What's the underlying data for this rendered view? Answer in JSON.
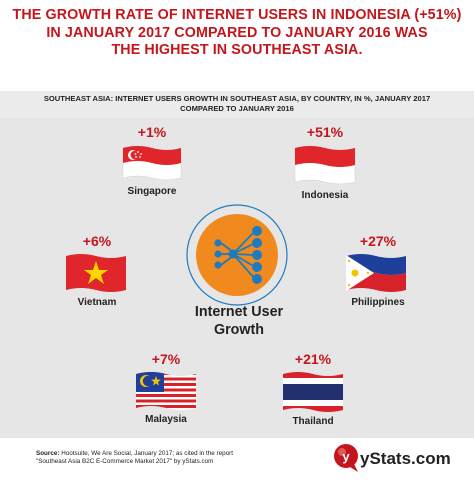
{
  "title_lines": [
    "THE GROWTH RATE OF INTERNET USERS IN INDONESIA (+51%)",
    "IN JANUARY 2017 COMPARED TO JANUARY 2016 WAS",
    "THE HIGHEST IN SOUTHEAST ASIA."
  ],
  "subtitle_lines": [
    "SOUTHEAST ASIA: INTERNET USERS GROWTH IN SOUTHEAST ASIA, BY COUNTRY, IN %, JANUARY 2017",
    "COMPARED TO JANUARY 2016"
  ],
  "hub": {
    "line1": "Internet User",
    "line2": "Growth",
    "icon": "network-growth-icon"
  },
  "chart_data": {
    "type": "table",
    "unit": "%",
    "categories": [
      "Singapore",
      "Indonesia",
      "Vietnam",
      "Philippines",
      "Malaysia",
      "Thailand"
    ],
    "values": [
      1,
      51,
      6,
      27,
      7,
      21
    ],
    "labels": [
      "+1%",
      "+51%",
      "+6%",
      "+27%",
      "+7%",
      "+21%"
    ],
    "flag_icons": [
      "singapore-flag-icon",
      "indonesia-flag-icon",
      "vietnam-flag-icon",
      "philippines-flag-icon",
      "malaysia-flag-icon",
      "thailand-flag-icon"
    ]
  },
  "footer": {
    "source_label": "Source:",
    "source_line1": "Hootsuite, We Are Social, January 2017; as cited in the report",
    "source_line2": "\"Southeast Asia B2C E-Commerce Market 2017\" by yStats.com",
    "brand": "yStats.com",
    "logo_letter": "y",
    "logo_icon": "ystats-logo-icon"
  },
  "colors": {
    "accent_red": "#c4161c",
    "hub_orange": "#f08a1f",
    "hub_blue": "#1f7bbf",
    "panel_bg": "#e6e6e6",
    "text": "#222222"
  }
}
